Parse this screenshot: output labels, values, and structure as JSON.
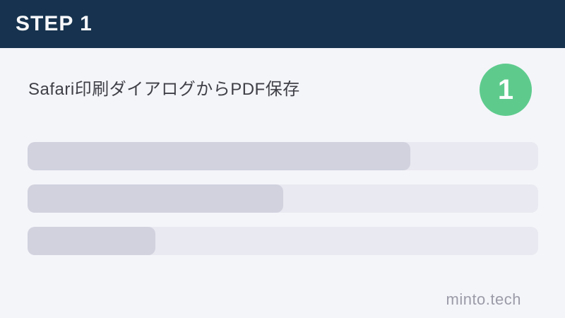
{
  "header": {
    "title": "STEP 1"
  },
  "main": {
    "title": "Safari印刷ダイアログからPDF保存",
    "badge": {
      "number": "1"
    },
    "skeleton_bars": [
      {
        "fill_percent": 75
      },
      {
        "fill_percent": 50
      },
      {
        "fill_percent": 25
      }
    ]
  },
  "footer": {
    "watermark": "minto.tech"
  },
  "colors": {
    "header_navy": "#16324e",
    "badge_green": "#5ecb8d",
    "background": "#f4f5f9",
    "bar_track": "#e9e9f1",
    "bar_fill": "#d1d2de"
  }
}
